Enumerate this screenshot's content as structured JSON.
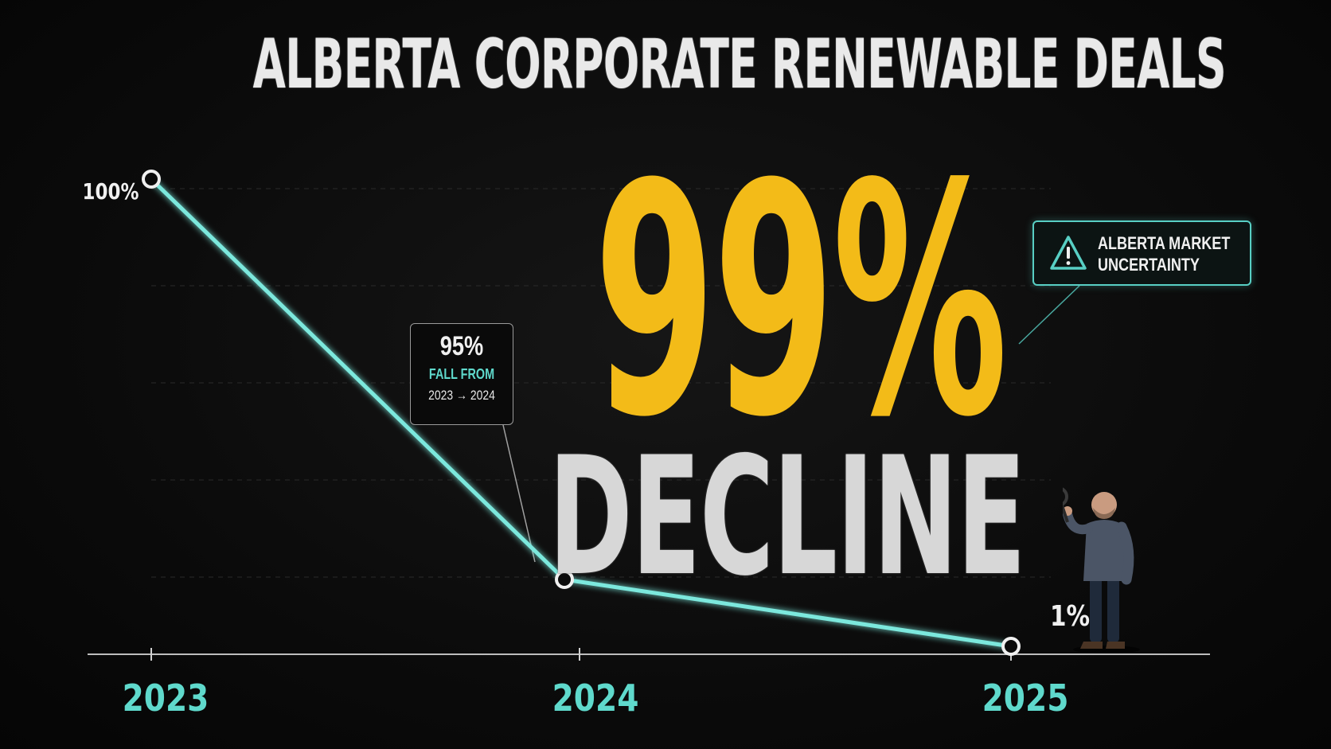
{
  "title": "ALBERTA CORPORATE RENEWABLE DEALS",
  "headline": {
    "value": "99%",
    "label": "DECLINE"
  },
  "chart_data": {
    "type": "line",
    "title": "ALBERTA CORPORATE RENEWABLE DEALS",
    "categories": [
      "2023",
      "2024",
      "2025"
    ],
    "series": [
      {
        "values": [
          100,
          5,
          1
        ]
      }
    ],
    "data_labels": [
      "100%",
      "",
      "1%"
    ],
    "ylim": [
      0,
      100
    ],
    "grid": true,
    "line_color": "#7ce8dd",
    "axis_label_color": "#5fd9cc"
  },
  "callout": {
    "value": "95%",
    "line1": "FALL FROM",
    "line2": "2023 → 2024"
  },
  "alert": {
    "line1": "ALBERTA MARKET",
    "line2": "UNCERTAINTY",
    "icon": "warning-triangle-icon"
  },
  "colors": {
    "headline": "#f3bb18",
    "accent": "#58cfc4"
  }
}
